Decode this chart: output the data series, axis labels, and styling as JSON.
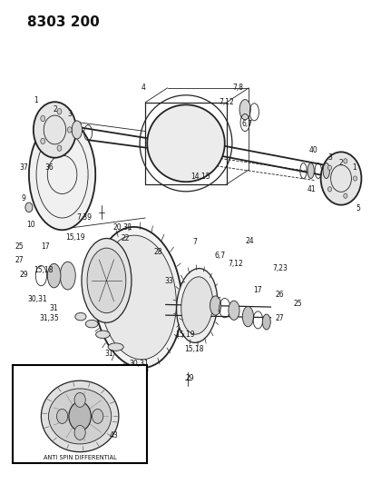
{
  "title": "8303 200",
  "bg_color": "#ffffff",
  "fig_width": 4.1,
  "fig_height": 5.33,
  "dpi": 100,
  "title_fontsize": 11,
  "title_fontweight": "bold",
  "anti_spin_label": "ANTI SPIN DIFFERENTIAL",
  "line_color": "#222222",
  "text_color": "#111111"
}
